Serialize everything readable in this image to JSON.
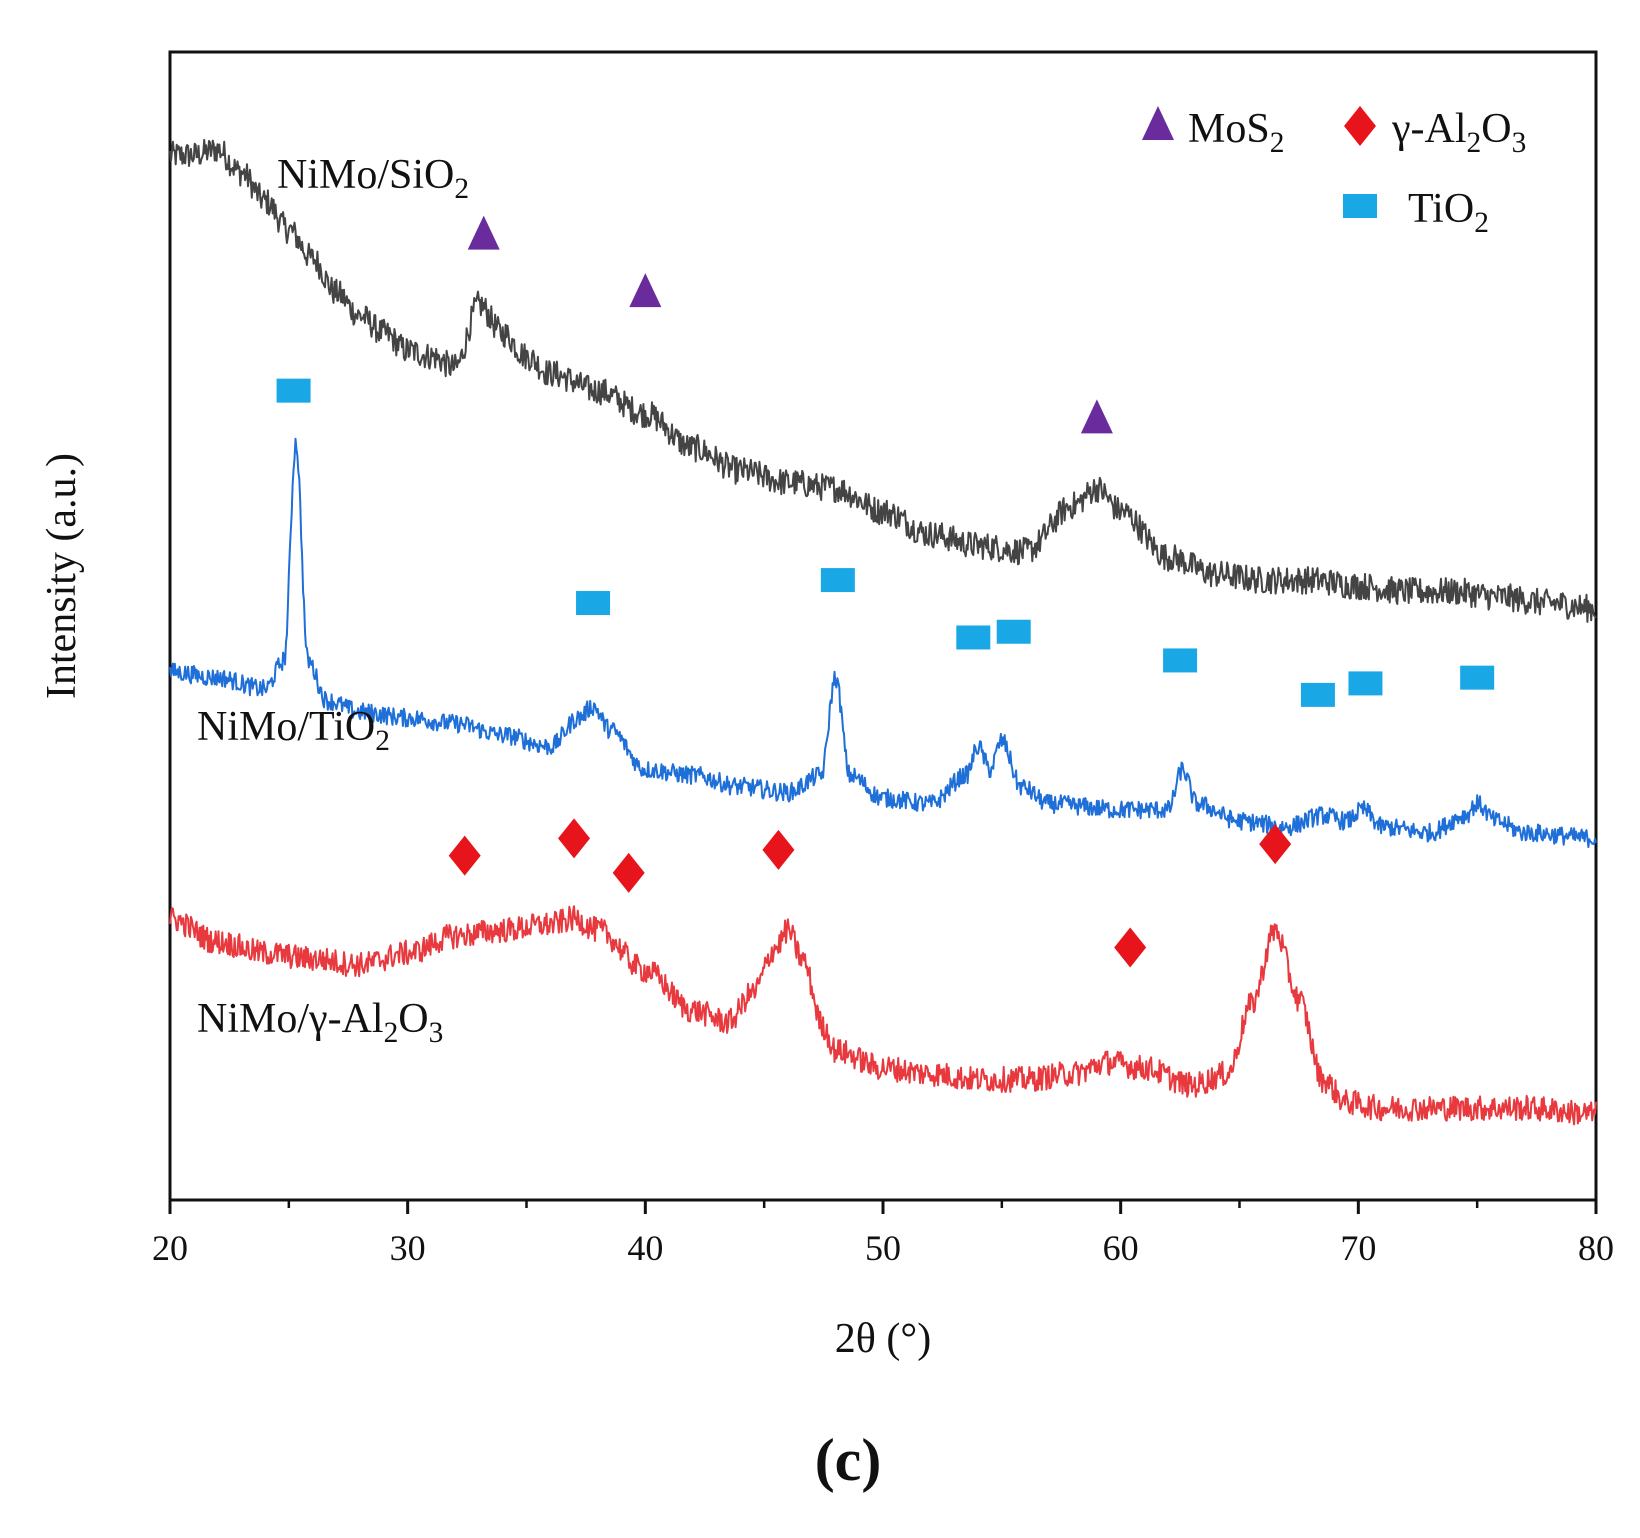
{
  "chart_data": {
    "type": "line",
    "title": "",
    "panel_label": "(c)",
    "xlabel": "2θ (°)",
    "ylabel": "Intensity (a.u.)",
    "xlim": [
      20,
      80
    ],
    "ylim": [
      0,
      100
    ],
    "x_ticks": [
      20,
      30,
      40,
      50,
      60,
      70,
      80
    ],
    "x_tick_labels": [
      "20",
      "30",
      "40",
      "50",
      "60",
      "70",
      "80"
    ],
    "y_ticks_shown": false,
    "grid": false,
    "legend_position": "top-right",
    "legend": [
      {
        "marker": "triangle",
        "color": "#6a2c9c",
        "base": "MoS",
        "sub": "2",
        "rest": ""
      },
      {
        "marker": "diamond",
        "color": "#e8141b",
        "base": "γ-Al",
        "sub": "2",
        "rest": "O",
        "sub2": "3"
      },
      {
        "marker": "square",
        "color": "#1aa7e6",
        "base": "TiO",
        "sub": "2",
        "rest": ""
      }
    ],
    "series": [
      {
        "name": "NiMo/SiO2",
        "label_parts": {
          "base": "NiMo/SiO",
          "sub": "2",
          "rest": "",
          "sub2": ""
        },
        "color": "#444444",
        "noise": 1.2,
        "x": [
          20,
          21,
          22,
          23,
          24,
          25,
          26,
          27,
          28,
          29,
          30,
          31,
          32,
          33,
          34,
          35,
          36,
          38,
          40,
          42,
          44,
          46,
          48,
          50,
          52,
          54,
          56,
          58,
          59,
          60,
          62,
          64,
          66,
          68,
          70,
          72,
          74,
          76,
          78,
          80
        ],
        "y": [
          91.0,
          91.0,
          91.5,
          89.5,
          87.0,
          84.5,
          82.0,
          79.0,
          77.0,
          75.5,
          74.0,
          73.5,
          72.5,
          78.0,
          75.5,
          73.5,
          72.0,
          70.5,
          68.5,
          65.5,
          63.5,
          62.5,
          62.0,
          60.0,
          58.0,
          57.0,
          56.5,
          60.5,
          62.0,
          60.0,
          56.0,
          54.5,
          54.0,
          54.0,
          53.5,
          53.0,
          53.0,
          52.5,
          52.0,
          51.5
        ]
      },
      {
        "name": "NiMo/TiO2",
        "label_parts": {
          "base": "NiMo/TiO",
          "sub": "2",
          "rest": "",
          "sub2": ""
        },
        "color": "#1f6fd8",
        "noise": 0.8,
        "x": [
          20,
          22,
          24,
          24.8,
          25.3,
          25.8,
          26.6,
          28,
          30,
          32,
          34,
          36,
          37.2,
          37.8,
          38.5,
          40,
          42,
          44,
          46,
          47.4,
          48,
          48.6,
          50,
          52,
          53.5,
          54,
          54.5,
          55,
          55.8,
          57,
          60,
          62,
          62.6,
          63.2,
          65,
          67,
          68.5,
          69.5,
          70.2,
          71,
          73,
          74.5,
          75,
          75.8,
          77,
          80
        ],
        "y": [
          46.0,
          45.5,
          44.5,
          47.0,
          66.0,
          47.0,
          43.5,
          42.5,
          42.0,
          41.5,
          40.5,
          39.5,
          42.0,
          43.0,
          41.0,
          37.5,
          37.0,
          36.0,
          35.5,
          37.0,
          45.5,
          37.0,
          35.0,
          34.5,
          37.0,
          39.5,
          37.5,
          40.0,
          36.0,
          34.5,
          34.0,
          34.0,
          37.5,
          34.5,
          33.0,
          32.5,
          33.5,
          33.0,
          34.0,
          32.5,
          32.0,
          33.5,
          34.5,
          33.0,
          32.0,
          31.5
        ]
      },
      {
        "name": "NiMo/γ-Al2O3",
        "label_parts": {
          "base": "NiMo/γ-Al",
          "sub": "2",
          "rest": "O",
          "sub2": "3"
        },
        "color": "#e8393f",
        "noise": 1.1,
        "x": [
          20,
          22,
          24,
          26,
          28,
          30,
          32,
          34,
          36,
          37,
          38,
          40,
          42,
          43.5,
          44.5,
          45.5,
          46,
          46.6,
          47.5,
          48,
          50,
          52,
          54,
          56,
          58,
          59.5,
          61,
          63,
          64.5,
          65.5,
          66.5,
          67.5,
          68.5,
          69.5,
          71,
          73,
          75,
          77,
          80
        ],
        "y": [
          24.5,
          22.5,
          21.5,
          21.0,
          20.5,
          21.5,
          23.0,
          23.5,
          24.0,
          24.5,
          23.5,
          20.0,
          16.5,
          15.5,
          18.0,
          22.0,
          23.5,
          21.0,
          15.0,
          13.0,
          11.5,
          11.0,
          10.5,
          10.5,
          11.0,
          12.0,
          11.5,
          10.0,
          11.0,
          17.0,
          23.5,
          17.5,
          10.5,
          8.5,
          8.0,
          8.0,
          8.0,
          8.0,
          7.5
        ]
      }
    ],
    "peak_markers": [
      {
        "phase": "MoS2",
        "marker": "triangle",
        "x": 33.2,
        "y": 84.0
      },
      {
        "phase": "MoS2",
        "marker": "triangle",
        "x": 40.0,
        "y": 79.0
      },
      {
        "phase": "MoS2",
        "marker": "triangle",
        "x": 59.0,
        "y": 68.0
      },
      {
        "phase": "TiO2",
        "marker": "square",
        "x": 25.2,
        "y": 70.5
      },
      {
        "phase": "TiO2",
        "marker": "square",
        "x": 37.8,
        "y": 52.0
      },
      {
        "phase": "TiO2",
        "marker": "square",
        "x": 48.1,
        "y": 54.0
      },
      {
        "phase": "TiO2",
        "marker": "square",
        "x": 53.8,
        "y": 49.0
      },
      {
        "phase": "TiO2",
        "marker": "square",
        "x": 55.5,
        "y": 49.5
      },
      {
        "phase": "TiO2",
        "marker": "square",
        "x": 62.5,
        "y": 47.0
      },
      {
        "phase": "TiO2",
        "marker": "square",
        "x": 68.3,
        "y": 44.0
      },
      {
        "phase": "TiO2",
        "marker": "square",
        "x": 70.3,
        "y": 45.0
      },
      {
        "phase": "TiO2",
        "marker": "square",
        "x": 75.0,
        "y": 45.5
      },
      {
        "phase": "γ-Al2O3",
        "marker": "diamond",
        "x": 32.4,
        "y": 30.0
      },
      {
        "phase": "γ-Al2O3",
        "marker": "diamond",
        "x": 37.0,
        "y": 31.5
      },
      {
        "phase": "γ-Al2O3",
        "marker": "diamond",
        "x": 39.3,
        "y": 28.5
      },
      {
        "phase": "γ-Al2O3",
        "marker": "diamond",
        "x": 45.6,
        "y": 30.5
      },
      {
        "phase": "γ-Al2O3",
        "marker": "diamond",
        "x": 60.4,
        "y": 22.0
      },
      {
        "phase": "γ-Al2O3",
        "marker": "diamond",
        "x": 66.5,
        "y": 31.0
      }
    ],
    "marker_colors": {
      "MoS2": "#6a2c9c",
      "TiO2": "#1aa7e6",
      "γ-Al2O3": "#e8141b"
    }
  }
}
